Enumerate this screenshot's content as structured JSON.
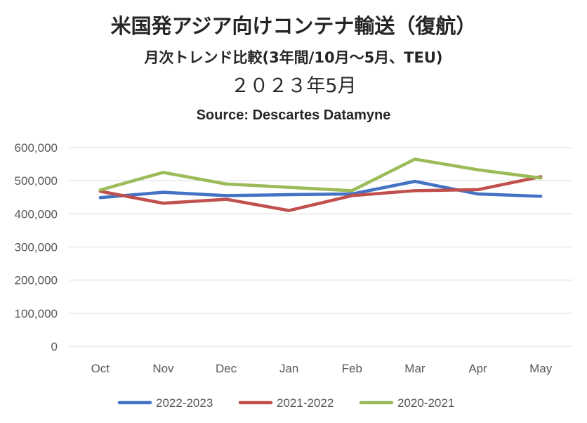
{
  "chart_data": {
    "type": "line",
    "title": "米国発アジア向けコンテナ輸送（復航）",
    "subtitle": "月次トレンド比較(3年間/10月～5月、TEU)",
    "date": "２０２３年5月",
    "source": "Source: Descartes Datamyne",
    "categories": [
      "Oct",
      "Nov",
      "Dec",
      "Jan",
      "Feb",
      "Mar",
      "Apr",
      "May"
    ],
    "ylim": [
      0,
      600000
    ],
    "yticks": [
      0,
      100000,
      200000,
      300000,
      400000,
      500000,
      600000
    ],
    "ytick_labels": [
      "0",
      "100,000",
      "200,000",
      "300,000",
      "400,000",
      "500,000",
      "600,000"
    ],
    "grid": true,
    "legend_position": "bottom",
    "series": [
      {
        "name": "2022-2023",
        "color": "#4472c4",
        "values": [
          449000,
          465000,
          455000,
          458000,
          460000,
          498000,
          460000,
          453000
        ]
      },
      {
        "name": "2021-2022",
        "color": "#c0504d",
        "values": [
          468000,
          432000,
          444000,
          410000,
          455000,
          470000,
          473000,
          512000
        ]
      },
      {
        "name": "2020-2021",
        "color": "#9bbb59",
        "values": [
          472000,
          525000,
          490000,
          480000,
          470000,
          565000,
          533000,
          508000
        ]
      }
    ]
  }
}
